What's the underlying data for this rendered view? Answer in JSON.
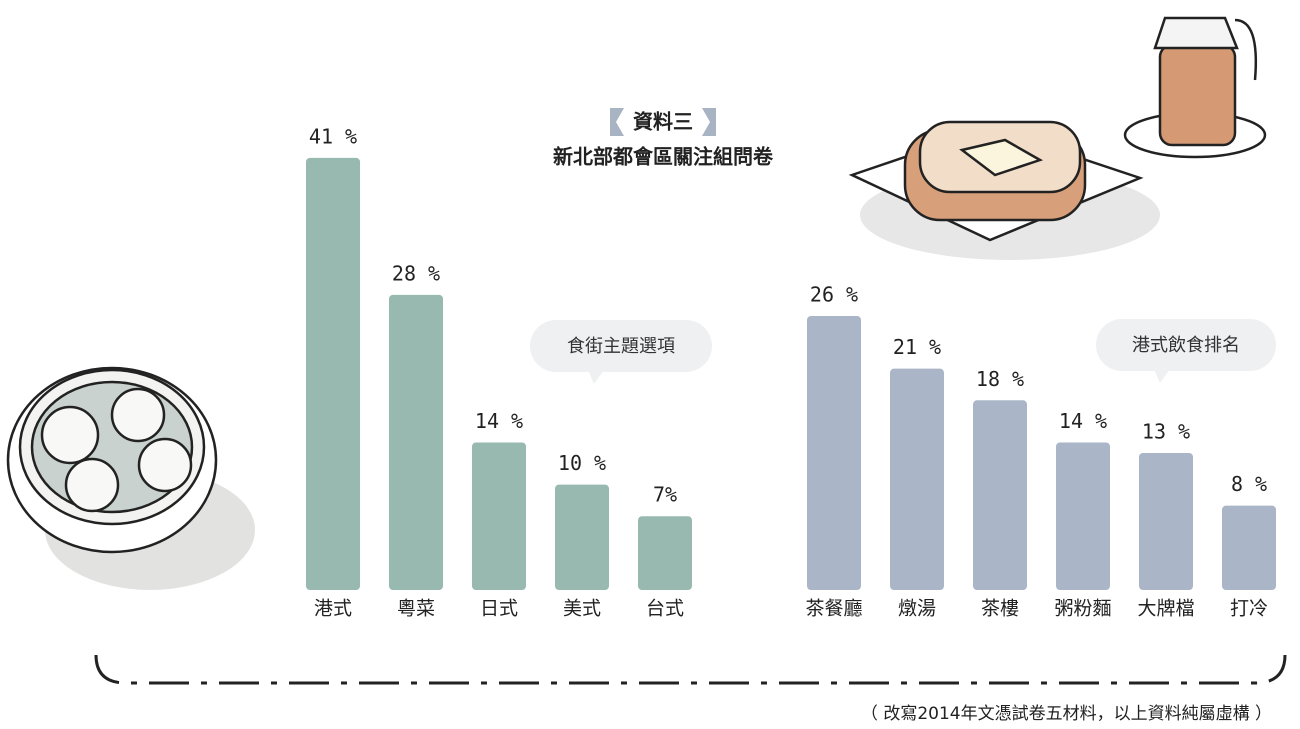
{
  "header": {
    "title": "資料三",
    "subtitle": "新北部都會區關注組問卷"
  },
  "footnote": "（ 改寫2014年文憑試卷五材料，以上資料純屬虛構 ）",
  "chart_data": [
    {
      "type": "bar",
      "title": "食街主題選項",
      "color": "#97b9b0",
      "categories": [
        "港式",
        "粵菜",
        "日式",
        "美式",
        "台式"
      ],
      "values": [
        41,
        28,
        14,
        10,
        7
      ],
      "value_labels": [
        "41 %",
        "28 %",
        "14 %",
        "10 %",
        "7%"
      ]
    },
    {
      "type": "bar",
      "title": "港式飲食排名",
      "color": "#aab6c7",
      "categories": [
        "茶餐廳",
        "燉湯",
        "茶樓",
        "粥粉麵",
        "大牌檔",
        "打冷"
      ],
      "values": [
        26,
        21,
        18,
        14,
        13,
        8
      ],
      "value_labels": [
        "26 %",
        "21 %",
        "18 %",
        "14 %",
        "13 %",
        "8 %"
      ]
    }
  ]
}
